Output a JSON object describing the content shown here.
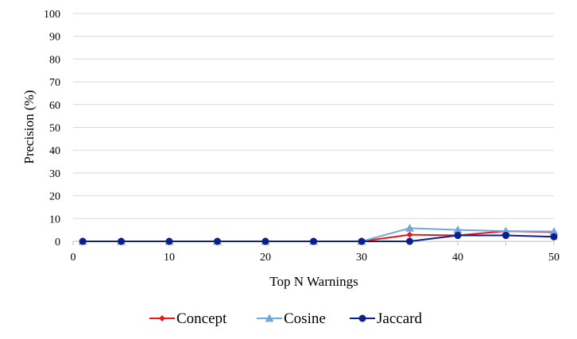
{
  "chart_data": {
    "type": "line",
    "title": "",
    "xlabel": "Top N Warnings",
    "ylabel": "Precision (%)",
    "xlim": [
      0,
      50
    ],
    "ylim": [
      0,
      100
    ],
    "x_ticks": [
      0,
      10,
      20,
      30,
      40,
      50
    ],
    "y_ticks": [
      0,
      10,
      20,
      30,
      40,
      50,
      60,
      70,
      80,
      90,
      100
    ],
    "grid": "horizontal",
    "legend_position": "bottom",
    "x": [
      1,
      5,
      10,
      15,
      20,
      25,
      30,
      35,
      40,
      45,
      50
    ],
    "series": [
      {
        "name": "Concept",
        "color": "#e8191c",
        "marker": "diamond",
        "values": [
          0,
          0,
          0,
          0,
          0,
          0,
          0,
          2.9,
          2.6,
          4.5,
          4.0
        ]
      },
      {
        "name": "Cosine",
        "color": "#6fa8dc",
        "marker": "triangle",
        "values": [
          0,
          0,
          0,
          0,
          0,
          0,
          0,
          5.8,
          5.0,
          4.5,
          4.3
        ]
      },
      {
        "name": "Jaccard",
        "color": "#0d1f8a",
        "marker": "circle",
        "values": [
          0,
          0,
          0,
          0,
          0,
          0,
          0,
          0,
          2.6,
          2.6,
          2.0
        ]
      }
    ]
  }
}
